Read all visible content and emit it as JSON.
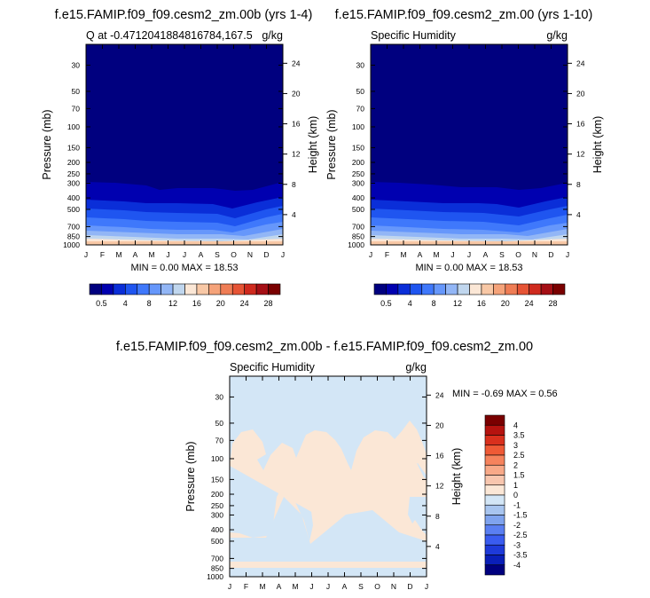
{
  "panels": [
    {
      "title": "f.e15.FAMIP.f09_f09.cesm2_zm.00b (yrs 1-4)",
      "left_label": "Q at -0.4712041884816784,167.5",
      "right_label": "g/kg",
      "ylabel": "Pressure (mb)",
      "ylabel_right": "Height (km)",
      "minmax": "MIN =   0.00 MAX =  18.53"
    },
    {
      "title": "f.e15.FAMIP.f09_f09.cesm2_zm.00 (yrs 1-10)",
      "left_label": "Specific Humidity",
      "right_label": "g/kg",
      "ylabel": "Pressure (mb)",
      "ylabel_right": "Height (km)",
      "minmax": "MIN =   0.00 MAX =  18.53"
    },
    {
      "title": "f.e15.FAMIP.f09_f09.cesm2_zm.00b - f.e15.FAMIP.f09_f09.cesm2_zm.00",
      "left_label": "Specific Humidity",
      "right_label": "g/kg",
      "ylabel": "Pressure (mb)",
      "ylabel_right": "Height (km)",
      "minmax": "MIN =  -0.69 MAX =   0.56"
    }
  ],
  "chart_data": [
    {
      "type": "heatmap",
      "title": "f.e15.FAMIP.f09_f09.cesm2_zm.00b (yrs 1-4)",
      "xlabel": "",
      "ylabel": "Pressure (mb)",
      "ylabel_right": "Height (km)",
      "x_ticks": [
        "J",
        "F",
        "M",
        "A",
        "M",
        "J",
        "J",
        "A",
        "S",
        "O",
        "N",
        "D",
        "J"
      ],
      "y_ticks": [
        "30",
        "50",
        "70",
        "100",
        "150",
        "200",
        "250",
        "300",
        "400",
        "500",
        "700",
        "850",
        "1000"
      ],
      "y_ticks_right": [
        "4",
        "8",
        "12",
        "16",
        "20",
        "24"
      ],
      "y_scale": "log",
      "ylim": [
        1000,
        20
      ],
      "levels": [
        0.5,
        4,
        8,
        12,
        16,
        20,
        24,
        28
      ],
      "colorbar_labels": [
        "0.5",
        "4",
        "8",
        "12",
        "16",
        "20",
        "24",
        "28"
      ],
      "min": 0.0,
      "max": 18.53
    },
    {
      "type": "heatmap",
      "title": "f.e15.FAMIP.f09_f09.cesm2_zm.00 (yrs 1-10)",
      "xlabel": "",
      "ylabel": "Pressure (mb)",
      "ylabel_right": "Height (km)",
      "x_ticks": [
        "J",
        "F",
        "M",
        "A",
        "M",
        "J",
        "J",
        "A",
        "S",
        "O",
        "N",
        "D",
        "J"
      ],
      "y_ticks": [
        "30",
        "50",
        "70",
        "100",
        "150",
        "200",
        "250",
        "300",
        "400",
        "500",
        "700",
        "850",
        "1000"
      ],
      "y_ticks_right": [
        "4",
        "8",
        "12",
        "16",
        "20",
        "24"
      ],
      "y_scale": "log",
      "ylim": [
        1000,
        20
      ],
      "levels": [
        0.5,
        4,
        8,
        12,
        16,
        20,
        24,
        28
      ],
      "colorbar_labels": [
        "0.5",
        "4",
        "8",
        "12",
        "16",
        "20",
        "24",
        "28"
      ],
      "min": 0.0,
      "max": 18.53
    },
    {
      "type": "heatmap",
      "title": "f.e15.FAMIP.f09_f09.cesm2_zm.00b - f.e15.FAMIP.f09_f09.cesm2_zm.00",
      "xlabel": "",
      "ylabel": "Pressure (mb)",
      "ylabel_right": "Height (km)",
      "x_ticks": [
        "J",
        "F",
        "M",
        "A",
        "M",
        "J",
        "J",
        "A",
        "S",
        "O",
        "N",
        "D",
        "J"
      ],
      "y_ticks": [
        "30",
        "50",
        "70",
        "100",
        "150",
        "200",
        "250",
        "300",
        "400",
        "500",
        "700",
        "850",
        "1000"
      ],
      "y_ticks_right": [
        "4",
        "8",
        "12",
        "16",
        "20",
        "24"
      ],
      "y_scale": "log",
      "ylim": [
        1000,
        20
      ],
      "levels": [
        -4,
        -3.5,
        -3,
        -2.5,
        -2,
        -1.5,
        -1,
        0,
        1,
        1.5,
        2,
        2.5,
        3,
        3.5,
        4
      ],
      "colorbar_labels": [
        "4",
        "3.5",
        "3",
        "2.5",
        "2",
        "1.5",
        "1",
        "0",
        "-1",
        "-1.5",
        "-2",
        "-2.5",
        "-3",
        "-3.5",
        "-4"
      ],
      "min": -0.69,
      "max": 0.56
    }
  ],
  "colors": {
    "seq": [
      "#00007f",
      "#0000b0",
      "#0a2ed8",
      "#1f55f0",
      "#3f78fb",
      "#6697fb",
      "#92b6f6",
      "#c0d6ee",
      "#fbe7d6",
      "#f8c8a6",
      "#f5a37a",
      "#ef7d55",
      "#e65435",
      "#cf2a1e",
      "#a50f15",
      "#7a0000"
    ],
    "div": [
      "#7a0000",
      "#b5130f",
      "#d9301d",
      "#ef5a36",
      "#f6835d",
      "#f8a988",
      "#f8c6ae",
      "#fbe7d6",
      "#d3e6f6",
      "#a8c5ef",
      "#7fa3ee",
      "#5a7ff2",
      "#3a5cf0",
      "#1e3ad9",
      "#0a1fb8",
      "#00007f"
    ]
  }
}
